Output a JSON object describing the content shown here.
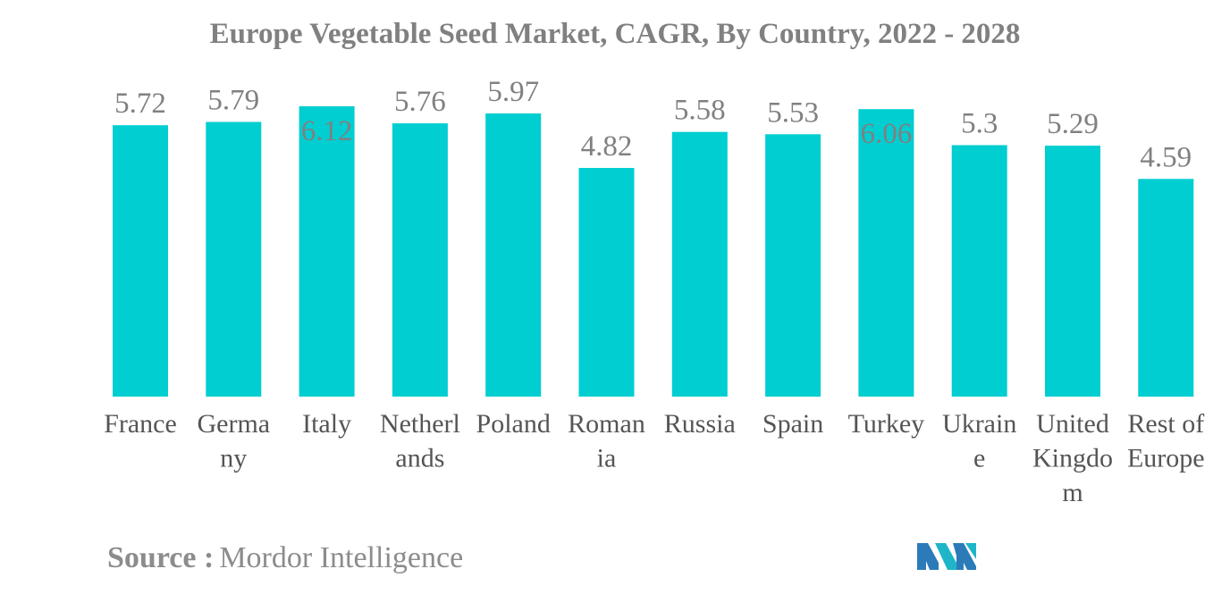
{
  "chart_data": {
    "type": "bar",
    "title": "Europe Vegetable Seed Market, CAGR, By Country, 2022 - 2028",
    "xlabel": "",
    "ylabel": "",
    "categories": [
      "France",
      "Germany",
      "Italy",
      "Netherlands",
      "Poland",
      "Romania",
      "Russia",
      "Spain",
      "Turkey",
      "Ukraine",
      "United Kingdom",
      "Rest of Europe"
    ],
    "category_lines": [
      [
        "France"
      ],
      [
        "Germa",
        "ny"
      ],
      [
        "Italy"
      ],
      [
        "Netherl",
        "ands"
      ],
      [
        "Poland"
      ],
      [
        "Roman",
        "ia"
      ],
      [
        "Russia"
      ],
      [
        "Spain"
      ],
      [
        "Turkey"
      ],
      [
        "Ukrain",
        "e"
      ],
      [
        "United",
        "Kingdo",
        "m"
      ],
      [
        "Rest of",
        "Europe"
      ]
    ],
    "values": [
      5.72,
      5.79,
      6.12,
      5.76,
      5.97,
      4.82,
      5.58,
      5.53,
      6.06,
      5.3,
      5.29,
      4.59
    ],
    "value_labels": [
      "5.72",
      "5.79",
      "6.12",
      "5.76",
      "5.97",
      "4.82",
      "5.58",
      "5.53",
      "6.06",
      "5.3",
      "5.29",
      "4.59"
    ],
    "label_inside_bar": [
      false,
      false,
      true,
      false,
      false,
      false,
      false,
      false,
      true,
      false,
      false,
      false
    ],
    "ylim": [
      0,
      6.12
    ],
    "grid": false,
    "legend": "none",
    "bar_color": "#00CED1"
  },
  "source": {
    "label": "Source :",
    "value": "Mordor Intelligence"
  },
  "logo": {
    "icon": "mordor-intelligence-logo-icon",
    "colors": [
      "#2B7BB9",
      "#1FB5C9"
    ]
  }
}
